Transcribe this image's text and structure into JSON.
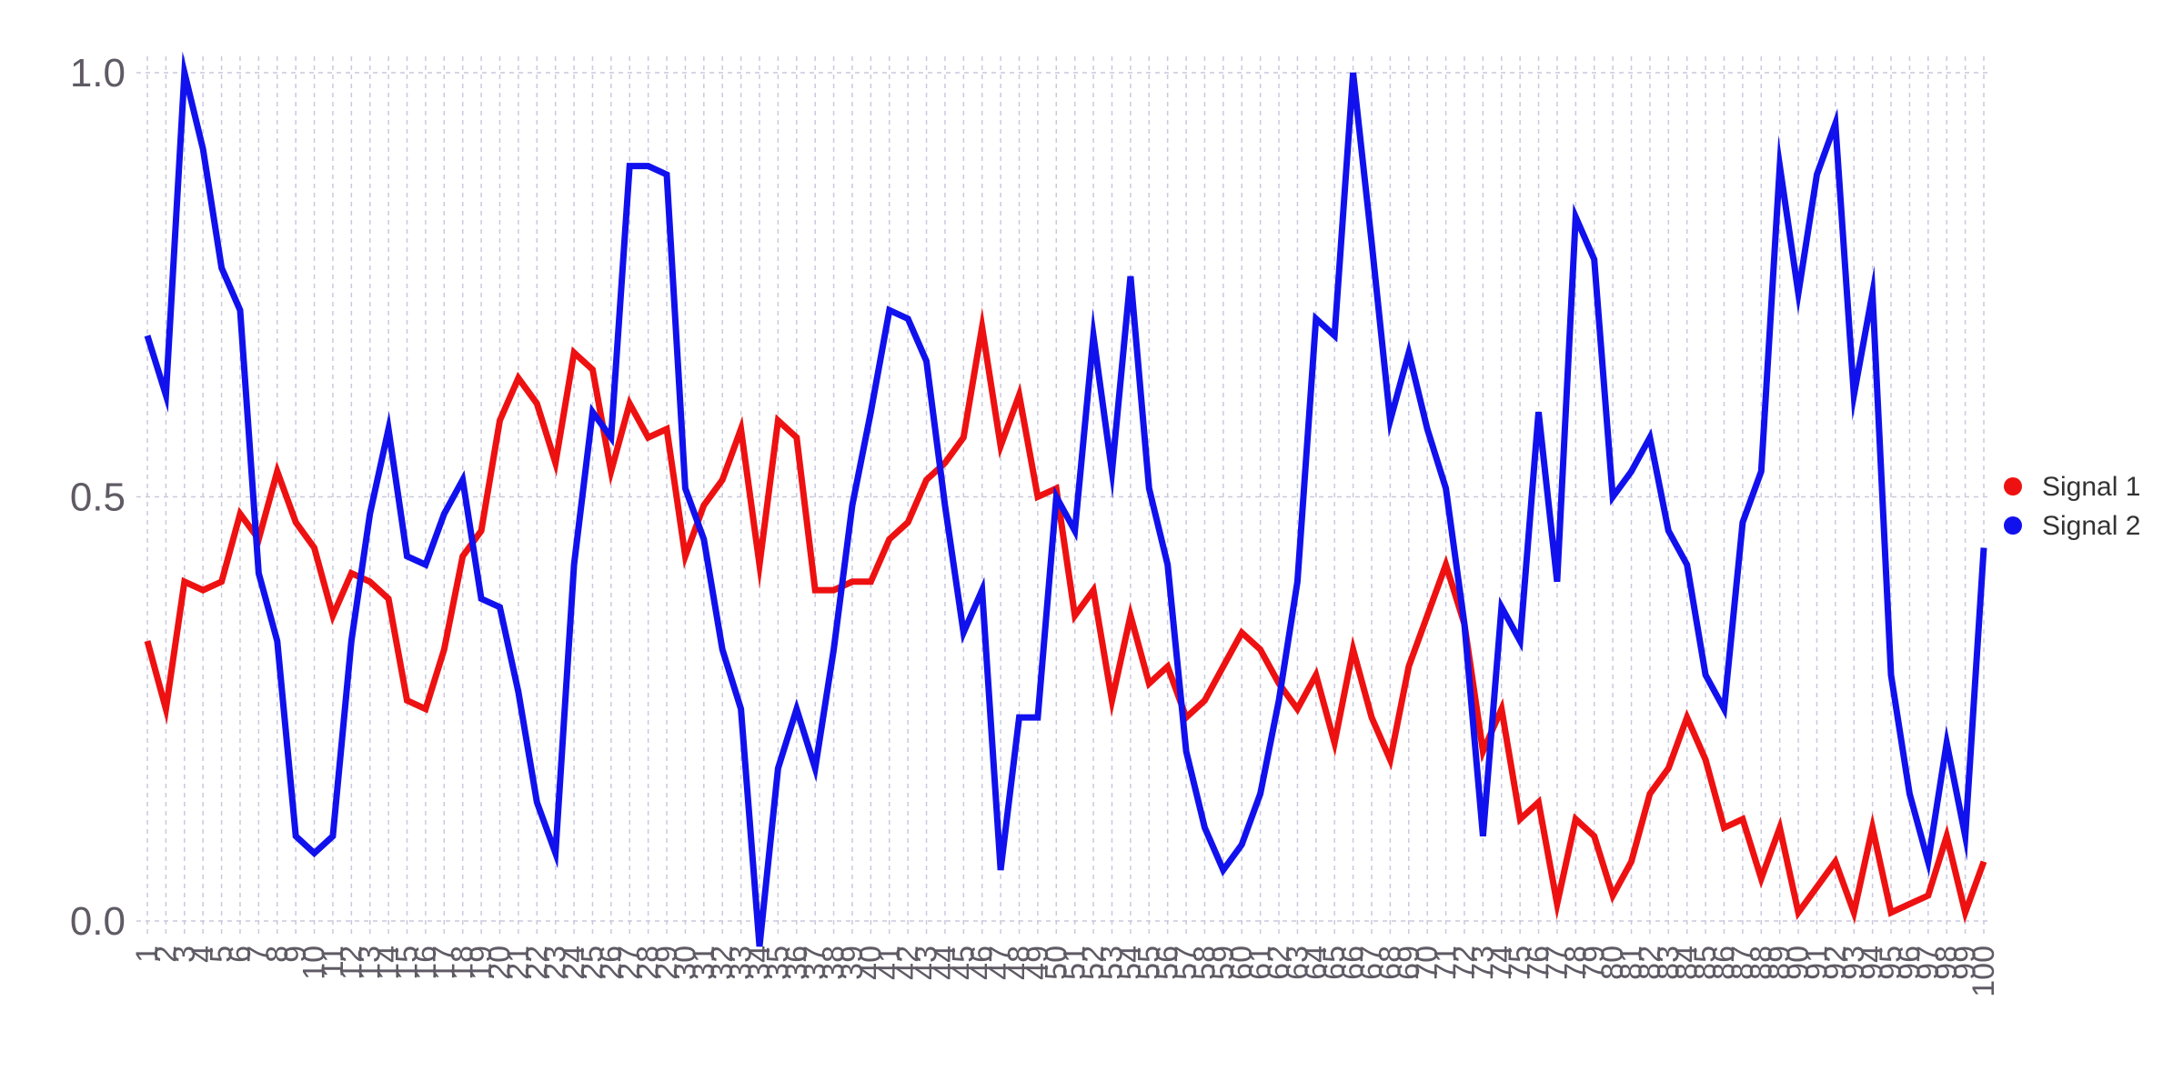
{
  "chart_data": {
    "type": "line",
    "title": "",
    "xlabel": "",
    "ylabel": "",
    "x": [
      1,
      2,
      3,
      4,
      5,
      6,
      7,
      8,
      9,
      10,
      11,
      12,
      13,
      14,
      15,
      16,
      17,
      18,
      19,
      20,
      21,
      22,
      23,
      24,
      25,
      26,
      27,
      28,
      29,
      30,
      31,
      32,
      33,
      34,
      35,
      36,
      37,
      38,
      39,
      40,
      41,
      42,
      43,
      44,
      45,
      46,
      47,
      48,
      49,
      50,
      51,
      52,
      53,
      54,
      55,
      56,
      57,
      58,
      59,
      60,
      61,
      62,
      63,
      64,
      65,
      66,
      67,
      68,
      69,
      70,
      71,
      72,
      73,
      74,
      75,
      76,
      77,
      78,
      79,
      80,
      81,
      82,
      83,
      84,
      85,
      86,
      87,
      88,
      89,
      90,
      91,
      92,
      93,
      94,
      95,
      96,
      97,
      98,
      99,
      100
    ],
    "x_tick_labels": [
      "1",
      "2",
      "3",
      "4",
      "5",
      "6",
      "7",
      "8",
      "9",
      "10",
      "11",
      "12",
      "13",
      "14",
      "15",
      "16",
      "17",
      "18",
      "19",
      "20",
      "21",
      "22",
      "23",
      "24",
      "25",
      "26",
      "27",
      "28",
      "29",
      "30",
      "31",
      "32",
      "33",
      "34",
      "35",
      "36",
      "37",
      "38",
      "39",
      "40",
      "41",
      "42",
      "43",
      "44",
      "45",
      "46",
      "47",
      "48",
      "49",
      "50",
      "51",
      "52",
      "53",
      "54",
      "55",
      "56",
      "57",
      "58",
      "59",
      "60",
      "61",
      "62",
      "63",
      "64",
      "65",
      "66",
      "67",
      "68",
      "69",
      "70",
      "71",
      "72",
      "73",
      "74",
      "75",
      "76",
      "77",
      "78",
      "79",
      "80",
      "81",
      "82",
      "83",
      "84",
      "85",
      "86",
      "87",
      "88",
      "89",
      "90",
      "91",
      "92",
      "93",
      "94",
      "95",
      "96",
      "97",
      "98",
      "99",
      "100"
    ],
    "y_ticks": [
      0.0,
      0.5,
      1.0
    ],
    "y_tick_labels": [
      "0.0",
      "0.5",
      "1.0"
    ],
    "ylim": [
      -0.03,
      1.03
    ],
    "xlim": [
      1,
      100
    ],
    "grid": true,
    "legend_position": "right",
    "series": [
      {
        "name": "Signal 1",
        "color": "#ee1111",
        "values": [
          0.33,
          0.25,
          0.4,
          0.39,
          0.4,
          0.48,
          0.45,
          0.53,
          0.47,
          0.44,
          0.36,
          0.41,
          0.4,
          0.38,
          0.26,
          0.25,
          0.32,
          0.43,
          0.46,
          0.59,
          0.64,
          0.61,
          0.54,
          0.67,
          0.65,
          0.53,
          0.61,
          0.57,
          0.58,
          0.43,
          0.49,
          0.52,
          0.58,
          0.42,
          0.59,
          0.57,
          0.39,
          0.39,
          0.4,
          0.4,
          0.45,
          0.47,
          0.52,
          0.54,
          0.57,
          0.7,
          0.56,
          0.62,
          0.5,
          0.51,
          0.36,
          0.39,
          0.26,
          0.36,
          0.28,
          0.3,
          0.24,
          0.26,
          0.3,
          0.34,
          0.32,
          0.28,
          0.25,
          0.29,
          0.21,
          0.32,
          0.24,
          0.19,
          0.3,
          0.36,
          0.42,
          0.35,
          0.2,
          0.25,
          0.12,
          0.14,
          0.02,
          0.12,
          0.1,
          0.03,
          0.07,
          0.15,
          0.18,
          0.24,
          0.19,
          0.11,
          0.12,
          0.05,
          0.11,
          0.01,
          0.04,
          0.07,
          0.01,
          0.11,
          0.01,
          0.02,
          0.03,
          0.1,
          0.01,
          0.07
        ]
      },
      {
        "name": "Signal 2",
        "color": "#1111ee",
        "values": [
          0.69,
          0.62,
          1.0,
          0.91,
          0.77,
          0.72,
          0.41,
          0.33,
          0.1,
          0.08,
          0.1,
          0.33,
          0.48,
          0.58,
          0.43,
          0.42,
          0.48,
          0.52,
          0.38,
          0.37,
          0.27,
          0.14,
          0.08,
          0.42,
          0.6,
          0.57,
          0.89,
          0.89,
          0.88,
          0.51,
          0.45,
          0.32,
          0.25,
          -0.03,
          0.18,
          0.25,
          0.18,
          0.32,
          0.49,
          0.6,
          0.72,
          0.71,
          0.66,
          0.49,
          0.34,
          0.39,
          0.06,
          0.24,
          0.24,
          0.5,
          0.46,
          0.69,
          0.53,
          0.76,
          0.51,
          0.42,
          0.2,
          0.11,
          0.06,
          0.09,
          0.15,
          0.26,
          0.4,
          0.71,
          0.69,
          1.0,
          0.8,
          0.59,
          0.67,
          0.58,
          0.51,
          0.35,
          0.1,
          0.37,
          0.33,
          0.6,
          0.4,
          0.83,
          0.78,
          0.5,
          0.53,
          0.57,
          0.46,
          0.42,
          0.29,
          0.25,
          0.47,
          0.53,
          0.89,
          0.74,
          0.88,
          0.94,
          0.62,
          0.74,
          0.29,
          0.15,
          0.07,
          0.21,
          0.1,
          0.44
        ]
      }
    ]
  }
}
